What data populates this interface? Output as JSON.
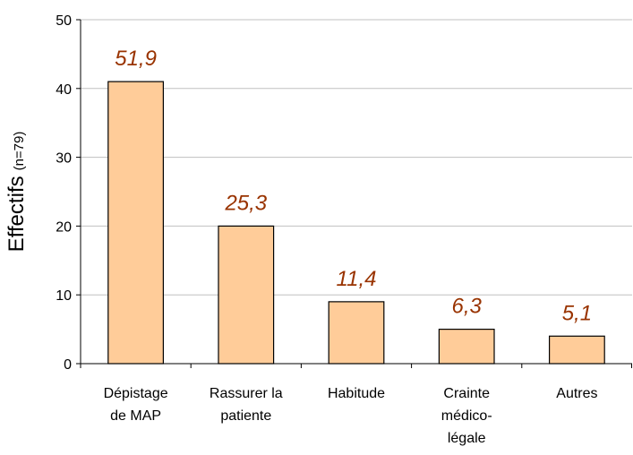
{
  "chart_data": {
    "type": "bar",
    "y_label": "Effectifs",
    "y_label_note": "(n=79)",
    "categories": [
      [
        "Dépistage",
        "de MAP"
      ],
      [
        "Rassurer la",
        "patiente"
      ],
      [
        "Habitude"
      ],
      [
        "Crainte",
        "médico-",
        "légale"
      ],
      [
        "Autres"
      ]
    ],
    "values": [
      41,
      20,
      9,
      5,
      4
    ],
    "annotations": [
      "51,9",
      "25,3",
      "11,4",
      "6,3",
      "5,1"
    ],
    "color": "#ffcc99",
    "annotation_color": "#993300",
    "ylim": [
      0,
      50
    ],
    "yticks": [
      0,
      10,
      20,
      30,
      40,
      50
    ],
    "grid": true
  }
}
